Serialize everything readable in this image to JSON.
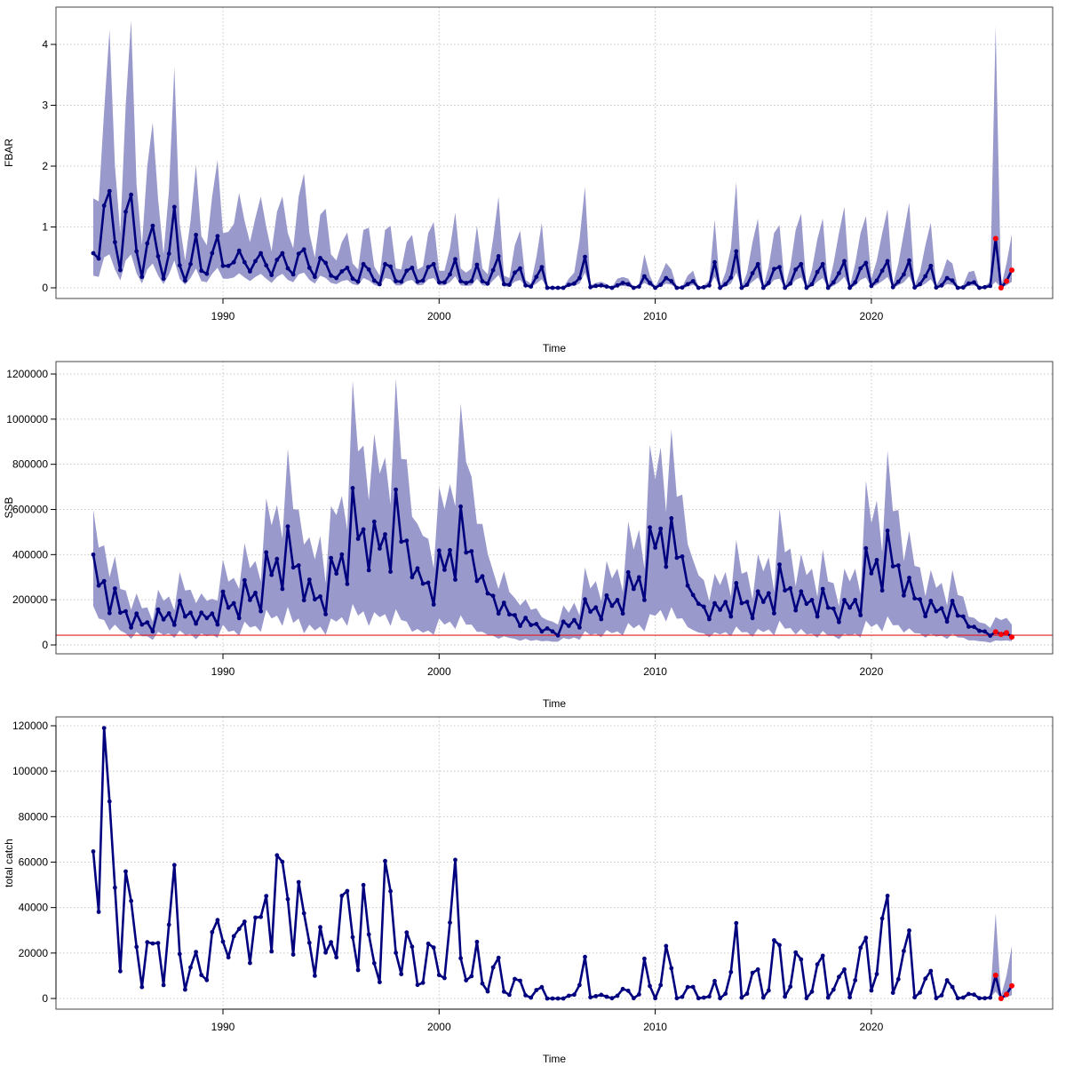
{
  "chart_data": [
    {
      "type": "line",
      "ylabel": "FBAR",
      "xlabel": "Time",
      "x_start": 1984,
      "x_step": 0.25,
      "xlim": [
        1983.5,
        2027
      ],
      "ylim": [
        0,
        4.4
      ],
      "xticks": [
        1990,
        2000,
        2010,
        2020
      ],
      "yticks": [
        0,
        1,
        2,
        3,
        4
      ],
      "grid": true,
      "projection_x": [
        2025.75,
        2026,
        2026.25,
        2026.5
      ],
      "values": [
        0.57,
        0.48,
        1.35,
        1.59,
        0.75,
        0.29,
        1.25,
        1.53,
        0.6,
        0.18,
        0.73,
        1.02,
        0.52,
        0.15,
        0.56,
        1.33,
        0.37,
        0.12,
        0.39,
        0.87,
        0.28,
        0.23,
        0.57,
        0.85,
        0.36,
        0.36,
        0.42,
        0.61,
        0.42,
        0.27,
        0.44,
        0.57,
        0.37,
        0.21,
        0.46,
        0.57,
        0.32,
        0.22,
        0.56,
        0.63,
        0.33,
        0.18,
        0.49,
        0.41,
        0.2,
        0.16,
        0.27,
        0.33,
        0.15,
        0.1,
        0.39,
        0.3,
        0.12,
        0.06,
        0.39,
        0.35,
        0.11,
        0.1,
        0.28,
        0.33,
        0.1,
        0.12,
        0.34,
        0.39,
        0.09,
        0.09,
        0.22,
        0.47,
        0.11,
        0.08,
        0.11,
        0.38,
        0.11,
        0.07,
        0.29,
        0.52,
        0.06,
        0.05,
        0.25,
        0.32,
        0.04,
        0.02,
        0.18,
        0.34,
        0,
        0,
        0,
        0,
        0.05,
        0.07,
        0.16,
        0.51,
        0.01,
        0.03,
        0.04,
        0.02,
        0,
        0.04,
        0.08,
        0.06,
        0,
        0.02,
        0.19,
        0.08,
        0,
        0.05,
        0.16,
        0.11,
        0,
        0.005,
        0.06,
        0.11,
        0,
        0.01,
        0.04,
        0.42,
        0,
        0.06,
        0.17,
        0.6,
        0,
        0.05,
        0.24,
        0.39,
        0,
        0.08,
        0.31,
        0.34,
        0,
        0.07,
        0.3,
        0.39,
        0,
        0.06,
        0.26,
        0.39,
        0,
        0.09,
        0.24,
        0.44,
        0,
        0.09,
        0.32,
        0.41,
        0.03,
        0.12,
        0.28,
        0.44,
        0.01,
        0.1,
        0.22,
        0.45,
        0.005,
        0.06,
        0.19,
        0.36,
        0.005,
        0.04,
        0.16,
        0.12,
        0,
        0.005,
        0.07,
        0.09,
        0,
        0.01,
        0.03,
        0.81,
        0,
        0.11,
        0.29
      ],
      "upper": [
        1.47,
        1.42,
        2.9,
        4.24,
        2.0,
        0.9,
        3.0,
        4.4,
        1.7,
        0.7,
        2.0,
        2.72,
        1.45,
        0.55,
        1.6,
        3.63,
        1.05,
        0.45,
        1.1,
        2.02,
        0.85,
        0.7,
        1.5,
        2.1,
        0.9,
        0.92,
        1.05,
        1.56,
        1.1,
        0.75,
        1.15,
        1.5,
        1.0,
        0.6,
        1.25,
        1.5,
        0.9,
        0.65,
        1.5,
        1.88,
        0.9,
        0.5,
        1.2,
        1.3,
        0.55,
        0.45,
        0.75,
        0.91,
        0.4,
        0.3,
        0.95,
        0.99,
        0.35,
        0.2,
        0.95,
        1.02,
        0.32,
        0.3,
        0.75,
        0.87,
        0.3,
        0.35,
        0.9,
        1.08,
        0.28,
        0.28,
        0.65,
        1.24,
        0.32,
        0.25,
        0.32,
        1.02,
        0.32,
        0.22,
        0.8,
        1.5,
        0.2,
        0.16,
        0.7,
        0.94,
        0.13,
        0.07,
        0.5,
        1.07,
        0.01,
        0.01,
        0.01,
        0.01,
        0.15,
        0.25,
        0.8,
        1.66,
        0.04,
        0.08,
        0.1,
        0.06,
        0.01,
        0.15,
        0.18,
        0.15,
        0.01,
        0.06,
        0.55,
        0.2,
        0.01,
        0.2,
        0.41,
        0.3,
        0.01,
        0.02,
        0.2,
        0.28,
        0.01,
        0.04,
        0.12,
        1.12,
        0.01,
        0.25,
        0.65,
        1.74,
        0.01,
        0.25,
        0.75,
        1.14,
        0.01,
        0.35,
        0.9,
        1.03,
        0.01,
        0.35,
        0.95,
        1.22,
        0.01,
        0.3,
        0.8,
        1.14,
        0.01,
        0.4,
        0.9,
        1.33,
        0.01,
        0.4,
        0.9,
        1.18,
        0.15,
        0.45,
        0.9,
        1.29,
        0.05,
        0.4,
        0.9,
        1.4,
        0.03,
        0.25,
        0.7,
        1.07,
        0.03,
        0.2,
        0.47,
        0.4,
        0.01,
        0.05,
        0.26,
        0.28,
        0.01,
        0.03,
        0.1,
        4.3,
        0.01,
        0.4,
        0.88
      ],
      "lower": [
        0.2,
        0.18,
        0.5,
        0.55,
        0.3,
        0.12,
        0.45,
        0.55,
        0.24,
        0.07,
        0.3,
        0.4,
        0.2,
        0.06,
        0.22,
        0.45,
        0.15,
        0.05,
        0.16,
        0.32,
        0.11,
        0.09,
        0.23,
        0.33,
        0.15,
        0.15,
        0.17,
        0.24,
        0.17,
        0.11,
        0.18,
        0.23,
        0.15,
        0.08,
        0.18,
        0.23,
        0.13,
        0.09,
        0.22,
        0.25,
        0.13,
        0.07,
        0.2,
        0.16,
        0.08,
        0.06,
        0.11,
        0.13,
        0.06,
        0.04,
        0.16,
        0.12,
        0.05,
        0.02,
        0.16,
        0.14,
        0.04,
        0.04,
        0.11,
        0.13,
        0.04,
        0.05,
        0.14,
        0.16,
        0.04,
        0.04,
        0.09,
        0.19,
        0.04,
        0.03,
        0.04,
        0.15,
        0.04,
        0.03,
        0.12,
        0.21,
        0.02,
        0.02,
        0.1,
        0.13,
        0.02,
        0.01,
        0.07,
        0.14,
        0,
        0,
        0,
        0,
        0.02,
        0.03,
        0.07,
        0.25,
        0,
        0.01,
        0.02,
        0.01,
        0,
        0.02,
        0.03,
        0.02,
        0,
        0.01,
        0.08,
        0.03,
        0,
        0.02,
        0.07,
        0.05,
        0,
        0,
        0.02,
        0.05,
        0,
        0,
        0.02,
        0.18,
        0,
        0.02,
        0.07,
        0.25,
        0,
        0.02,
        0.1,
        0.17,
        0,
        0.03,
        0.13,
        0.15,
        0,
        0.03,
        0.13,
        0.17,
        0,
        0.02,
        0.1,
        0.16,
        0,
        0.03,
        0.09,
        0.18,
        0,
        0.03,
        0.13,
        0.17,
        0.01,
        0.05,
        0.11,
        0.18,
        0,
        0.04,
        0.09,
        0.19,
        0,
        0.02,
        0.07,
        0.14,
        0,
        0.01,
        0.06,
        0.05,
        0,
        0,
        0.03,
        0.04,
        0,
        0,
        0.01,
        0.1,
        0,
        0.04,
        0.1
      ]
    },
    {
      "type": "line",
      "ylabel": "SSB",
      "xlabel": "Time",
      "x_start": 1984,
      "x_step": 0.25,
      "xlim": [
        1983.5,
        2027
      ],
      "ylim": [
        0,
        1220000
      ],
      "xticks": [
        1990,
        2000,
        2010,
        2020
      ],
      "yticks": [
        0,
        200000,
        400000,
        600000,
        800000,
        1000000,
        1200000
      ],
      "grid": true,
      "reference_line": 43000,
      "projection_x": [
        2025.75,
        2026,
        2026.25,
        2026.5
      ],
      "values": [
        400000,
        263000,
        283000,
        141000,
        250000,
        143000,
        149000,
        77000,
        139000,
        90000,
        100000,
        60000,
        157000,
        113000,
        140000,
        89000,
        195000,
        126000,
        143000,
        94000,
        143000,
        119000,
        139000,
        90000,
        236000,
        165000,
        185000,
        119000,
        287000,
        199000,
        231000,
        149000,
        410000,
        310000,
        381000,
        248000,
        525000,
        343000,
        352000,
        198000,
        289000,
        202000,
        215000,
        136000,
        385000,
        316000,
        401000,
        270000,
        695000,
        470000,
        512000,
        331000,
        546000,
        427000,
        490000,
        324000,
        688000,
        457000,
        462000,
        300000,
        339000,
        271000,
        276000,
        179000,
        418000,
        333000,
        420000,
        289000,
        613000,
        409000,
        415000,
        283000,
        304000,
        228000,
        217000,
        139000,
        187000,
        135000,
        132000,
        84000,
        120000,
        88000,
        93000,
        60000,
        73000,
        60000,
        42000,
        103000,
        84000,
        110000,
        77000,
        202000,
        147000,
        166000,
        114000,
        219000,
        173000,
        199000,
        139000,
        322000,
        248000,
        300000,
        199000,
        521000,
        431000,
        515000,
        346000,
        561000,
        386000,
        392000,
        263000,
        221000,
        182000,
        169000,
        114000,
        185000,
        156000,
        190000,
        126000,
        274000,
        185000,
        191000,
        119000,
        237000,
        191000,
        229000,
        140000,
        356000,
        241000,
        251000,
        153000,
        237000,
        182000,
        199000,
        126000,
        248000,
        165000,
        161000,
        101000,
        199000,
        165000,
        199000,
        132000,
        428000,
        317000,
        376000,
        241000,
        506000,
        348000,
        352000,
        219000,
        297000,
        206000,
        202000,
        127000,
        195000,
        149000,
        162000,
        103000,
        195000,
        130000,
        126000,
        81000,
        80000,
        62000,
        60000,
        41000,
        58000,
        47000,
        54000,
        35000
      ],
      "upper": [
        599000,
        431000,
        441000,
        300000,
        392000,
        248000,
        241000,
        156000,
        228000,
        162000,
        166000,
        103000,
        245000,
        195000,
        215000,
        153000,
        323000,
        241000,
        245000,
        185000,
        228000,
        195000,
        204000,
        195000,
        379000,
        280000,
        297000,
        248000,
        451000,
        339000,
        372000,
        280000,
        650000,
        529000,
        621000,
        470000,
        870000,
        601000,
        599000,
        444000,
        477000,
        379000,
        483000,
        274000,
        614000,
        575000,
        660000,
        510000,
        1171000,
        857000,
        883000,
        640000,
        935000,
        758000,
        830000,
        621000,
        1180000,
        824000,
        821000,
        568000,
        536000,
        483000,
        470000,
        339000,
        699000,
        601000,
        712000,
        614000,
        1069000,
        811000,
        745000,
        536000,
        536000,
        405000,
        326000,
        248000,
        326000,
        234000,
        208000,
        175000,
        202000,
        156000,
        162000,
        123000,
        110000,
        103000,
        90000,
        175000,
        143000,
        187000,
        131000,
        343000,
        250000,
        282000,
        194000,
        372000,
        294000,
        338000,
        236000,
        547000,
        422000,
        510000,
        338000,
        886000,
        733000,
        876000,
        588000,
        954000,
        656000,
        666000,
        447000,
        376000,
        309000,
        287000,
        194000,
        315000,
        265000,
        323000,
        214000,
        466000,
        315000,
        325000,
        202000,
        403000,
        325000,
        389000,
        238000,
        605000,
        410000,
        427000,
        260000,
        403000,
        309000,
        338000,
        214000,
        422000,
        281000,
        274000,
        172000,
        338000,
        281000,
        338000,
        224000,
        728000,
        539000,
        639000,
        410000,
        860000,
        592000,
        598000,
        372000,
        505000,
        350000,
        343000,
        216000,
        332000,
        253000,
        275000,
        175000,
        332000,
        221000,
        214000,
        125000,
        120000,
        100000,
        95000,
        75000,
        123000,
        110000,
        120000,
        90000
      ],
      "lower": [
        172000,
        117000,
        110000,
        64000,
        90000,
        64000,
        51000,
        27000,
        58000,
        38000,
        38000,
        22000,
        58000,
        45000,
        51000,
        31000,
        64000,
        45000,
        48000,
        25000,
        51000,
        38000,
        47000,
        31000,
        90000,
        58000,
        64000,
        41000,
        103000,
        77000,
        84000,
        58000,
        156000,
        117000,
        130000,
        84000,
        169000,
        97000,
        117000,
        51000,
        90000,
        64000,
        81000,
        45000,
        117000,
        103000,
        123000,
        84000,
        182000,
        130000,
        149000,
        84000,
        145000,
        123000,
        136000,
        84000,
        158000,
        110000,
        103000,
        58000,
        71000,
        54000,
        64000,
        45000,
        117000,
        90000,
        103000,
        71000,
        132000,
        90000,
        90000,
        58000,
        58000,
        45000,
        41000,
        27000,
        38000,
        31000,
        27000,
        18000,
        27000,
        18000,
        22000,
        16000,
        18000,
        14000,
        14000,
        31000,
        25000,
        33000,
        23000,
        61000,
        44000,
        50000,
        34000,
        66000,
        52000,
        60000,
        42000,
        97000,
        74000,
        90000,
        60000,
        136000,
        129000,
        155000,
        104000,
        168000,
        116000,
        118000,
        79000,
        66000,
        55000,
        51000,
        34000,
        56000,
        47000,
        57000,
        38000,
        82000,
        56000,
        57000,
        36000,
        71000,
        57000,
        69000,
        42000,
        107000,
        72000,
        75000,
        46000,
        71000,
        46000,
        50000,
        32000,
        62000,
        41000,
        40000,
        25000,
        50000,
        41000,
        50000,
        33000,
        107000,
        79000,
        94000,
        60000,
        127000,
        87000,
        88000,
        55000,
        74000,
        52000,
        51000,
        32000,
        49000,
        37000,
        41000,
        26000,
        49000,
        33000,
        32000,
        20000,
        20000,
        16000,
        15000,
        10000,
        20000,
        18000,
        20000,
        16000
      ]
    },
    {
      "type": "line",
      "ylabel": "total catch",
      "xlabel": "Time",
      "x_start": 1984,
      "x_step": 0.25,
      "xlim": [
        1983.5,
        2027
      ],
      "ylim": [
        0,
        122000
      ],
      "xticks": [
        1990,
        2000,
        2010,
        2020
      ],
      "yticks": [
        0,
        20000,
        40000,
        60000,
        80000,
        100000,
        120000
      ],
      "grid": true,
      "projection_x": [
        2025.75,
        2026,
        2026.25,
        2026.5
      ],
      "values": [
        64700,
        38100,
        119000,
        86700,
        48800,
        12000,
        55900,
        42900,
        22700,
        5000,
        24800,
        24200,
        24400,
        5900,
        32500,
        58700,
        19600,
        3900,
        13700,
        20500,
        10300,
        8100,
        29200,
        34500,
        25000,
        18100,
        27400,
        30600,
        33800,
        15600,
        35600,
        35900,
        45100,
        20700,
        63000,
        60100,
        43700,
        19300,
        51200,
        37500,
        24500,
        10000,
        31400,
        20200,
        24800,
        18100,
        45200,
        47300,
        27000,
        12500,
        49900,
        28200,
        15500,
        7200,
        60500,
        47200,
        20100,
        10700,
        29100,
        22800,
        6000,
        6900,
        24100,
        22400,
        10300,
        9000,
        33400,
        61000,
        17700,
        8000,
        9800,
        24900,
        6600,
        3100,
        13700,
        17900,
        3000,
        1600,
        8600,
        7800,
        1400,
        400,
        3700,
        5000,
        0,
        0,
        0,
        0,
        1200,
        1700,
        5900,
        18300,
        500,
        1000,
        1600,
        800,
        100,
        1200,
        4200,
        3400,
        100,
        1800,
        17500,
        5500,
        100,
        5900,
        23100,
        13300,
        100,
        700,
        5000,
        5100,
        100,
        400,
        900,
        7700,
        100,
        2100,
        11600,
        33200,
        400,
        2100,
        11300,
        12800,
        400,
        3500,
        25600,
        23500,
        800,
        5200,
        20300,
        17200,
        100,
        3000,
        15000,
        18800,
        400,
        3900,
        9500,
        12800,
        500,
        8000,
        22300,
        26700,
        3500,
        10800,
        35200,
        45200,
        2500,
        8500,
        20900,
        29900,
        500,
        2600,
        8700,
        12100,
        100,
        1400,
        8000,
        5100,
        100,
        400,
        2000,
        1700,
        100,
        100,
        400,
        10200,
        0,
        1800,
        5600
      ],
      "band_x": [
        2025.5,
        2025.75,
        2026,
        2026.25,
        2026.5
      ],
      "band_upper": [
        400,
        37500,
        1000,
        10000,
        23000
      ],
      "band_lower": [
        400,
        3000,
        0,
        500,
        1500
      ]
    }
  ],
  "colors": {
    "line": "#00007f",
    "band": "#9999cc",
    "projection": "#ff0000",
    "reference_line": "#e41a1c",
    "grid": "#c8c8c8"
  }
}
